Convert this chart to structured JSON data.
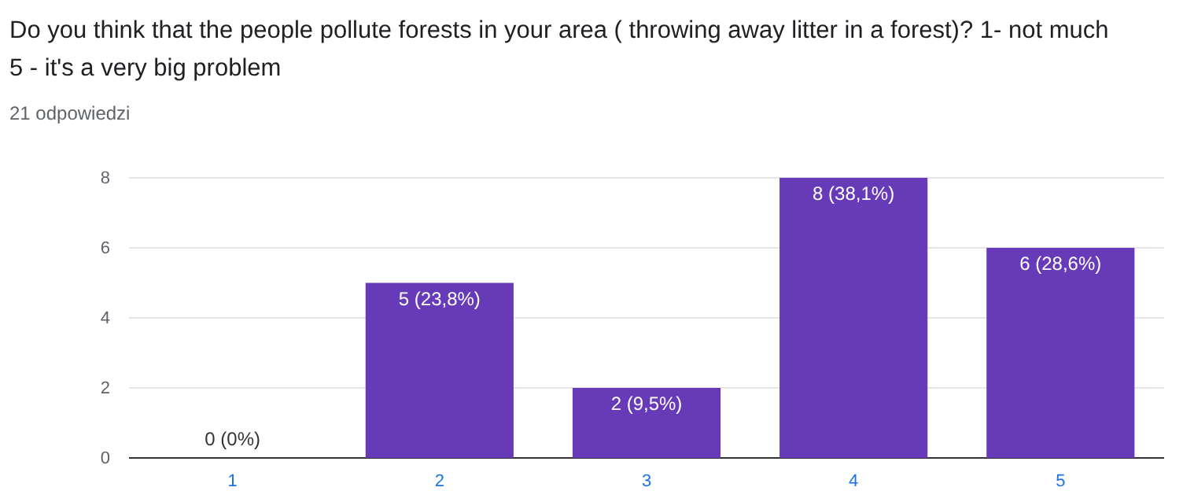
{
  "chart_data": {
    "type": "bar",
    "title": "Do you think that the people pollute forests in your area ( throwing away litter in a forest)? 1- not much 5 - it's a very big problem",
    "subtitle": "21 odpowiedzi",
    "categories": [
      "1",
      "2",
      "3",
      "4",
      "5"
    ],
    "values": [
      0,
      5,
      2,
      8,
      6
    ],
    "color": "#673ab7",
    "value_labels": [
      "0 (0%)",
      "5 (23,8%)",
      "2 (9,5%)",
      "8 (38,1%)",
      "6 (28,6%)"
    ],
    "ylim": [
      0,
      8
    ],
    "yticks": [
      0,
      2,
      4,
      6,
      8
    ],
    "grid": "y"
  }
}
